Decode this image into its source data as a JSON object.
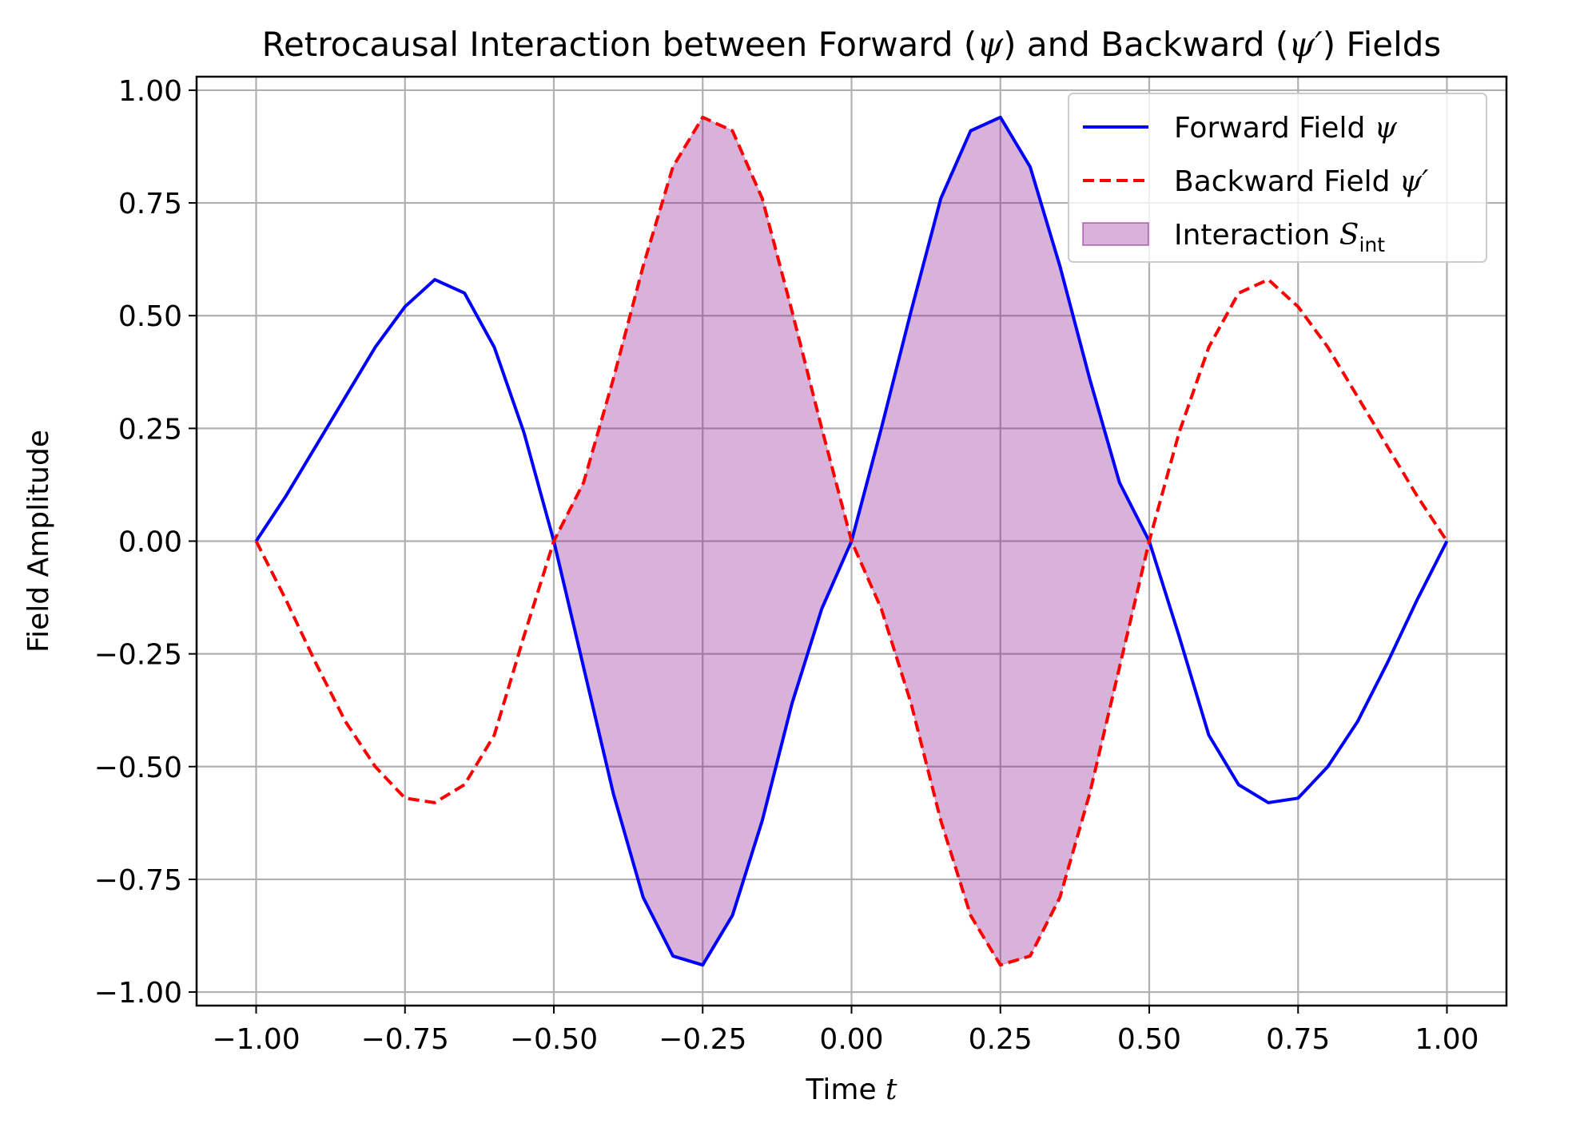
{
  "chart_data": {
    "type": "line",
    "title": "Retrocausal Interaction between Forward (ψ) and Backward (ψ′) Fields",
    "title_parts": [
      {
        "text": "Retrocausal Interaction between Forward (",
        "math": false
      },
      {
        "text": "ψ",
        "math": true
      },
      {
        "text": ") and Backward (",
        "math": false
      },
      {
        "text": "ψ′",
        "math": true
      },
      {
        "text": ") Fields",
        "math": false
      }
    ],
    "xlabel": "Time t",
    "xlabel_parts": [
      {
        "text": "Time ",
        "math": false
      },
      {
        "text": "t",
        "math": true
      }
    ],
    "ylabel": "Field Amplitude",
    "xlim": [
      -1.1,
      1.1
    ],
    "ylim": [
      -1.03,
      1.03
    ],
    "x_ticks": [
      -1.0,
      -0.75,
      -0.5,
      -0.25,
      0.0,
      0.25,
      0.5,
      0.75,
      1.0
    ],
    "x_tick_labels": [
      "−1.00",
      "−0.75",
      "−0.50",
      "−0.25",
      "0.00",
      "0.25",
      "0.50",
      "0.75",
      "1.00"
    ],
    "y_ticks": [
      -1.0,
      -0.75,
      -0.5,
      -0.25,
      0.0,
      0.25,
      0.5,
      0.75,
      1.0
    ],
    "y_tick_labels": [
      "−1.00",
      "−0.75",
      "−0.50",
      "−0.25",
      "0.00",
      "0.25",
      "0.50",
      "0.75",
      "1.00"
    ],
    "grid": true,
    "legend_position": "top-right",
    "x": [
      -1.0,
      -0.95,
      -0.9,
      -0.85,
      -0.8,
      -0.75,
      -0.7,
      -0.65,
      -0.6,
      -0.55,
      -0.5,
      -0.45,
      -0.4,
      -0.35,
      -0.3,
      -0.25,
      -0.2,
      -0.15,
      -0.1,
      -0.05,
      0.0,
      0.05,
      0.1,
      0.15,
      0.2,
      0.25,
      0.3,
      0.35,
      0.4,
      0.45,
      0.5,
      0.55,
      0.6,
      0.65,
      0.7,
      0.75,
      0.8,
      0.85,
      0.9,
      0.95,
      1.0
    ],
    "series": [
      {
        "name": "Forward Field ψ",
        "label_parts": [
          {
            "text": "Forward Field ",
            "math": false
          },
          {
            "text": "ψ",
            "math": true
          }
        ],
        "color": "#0000ff",
        "style": "solid",
        "values": [
          0.0,
          0.1,
          0.21,
          0.32,
          0.43,
          0.52,
          0.58,
          0.55,
          0.43,
          0.24,
          0.0,
          -0.28,
          -0.56,
          -0.79,
          -0.92,
          -0.94,
          -0.83,
          -0.62,
          -0.36,
          -0.15,
          0.0,
          0.25,
          0.51,
          0.76,
          0.91,
          0.94,
          0.83,
          0.61,
          0.36,
          0.13,
          0.0,
          -0.21,
          -0.43,
          -0.54,
          -0.58,
          -0.57,
          -0.5,
          -0.4,
          -0.27,
          -0.13,
          0.0
        ]
      },
      {
        "name": "Backward Field ψ′",
        "label_parts": [
          {
            "text": "Backward Field ",
            "math": false
          },
          {
            "text": "ψ′",
            "math": true
          }
        ],
        "color": "#ff0000",
        "style": "dashed",
        "values": [
          0.0,
          -0.13,
          -0.27,
          -0.4,
          -0.5,
          -0.57,
          -0.58,
          -0.54,
          -0.43,
          -0.21,
          0.0,
          0.13,
          0.36,
          0.61,
          0.83,
          0.94,
          0.91,
          0.76,
          0.51,
          0.25,
          0.0,
          -0.15,
          -0.36,
          -0.62,
          -0.83,
          -0.94,
          -0.92,
          -0.79,
          -0.56,
          -0.28,
          0.0,
          0.24,
          0.43,
          0.55,
          0.58,
          0.52,
          0.43,
          0.32,
          0.21,
          0.1,
          0.0
        ]
      }
    ],
    "fill": {
      "name": "Interaction Sint",
      "label_parts": [
        {
          "text": "Interaction ",
          "math": false
        },
        {
          "text": "S",
          "math": true
        },
        {
          "text": "int",
          "math": false,
          "sub": true
        }
      ],
      "between": [
        "Forward Field ψ",
        "Backward Field ψ′"
      ],
      "x_range": [
        -0.5,
        0.5
      ],
      "color": "#800080",
      "alpha": 0.3
    }
  }
}
